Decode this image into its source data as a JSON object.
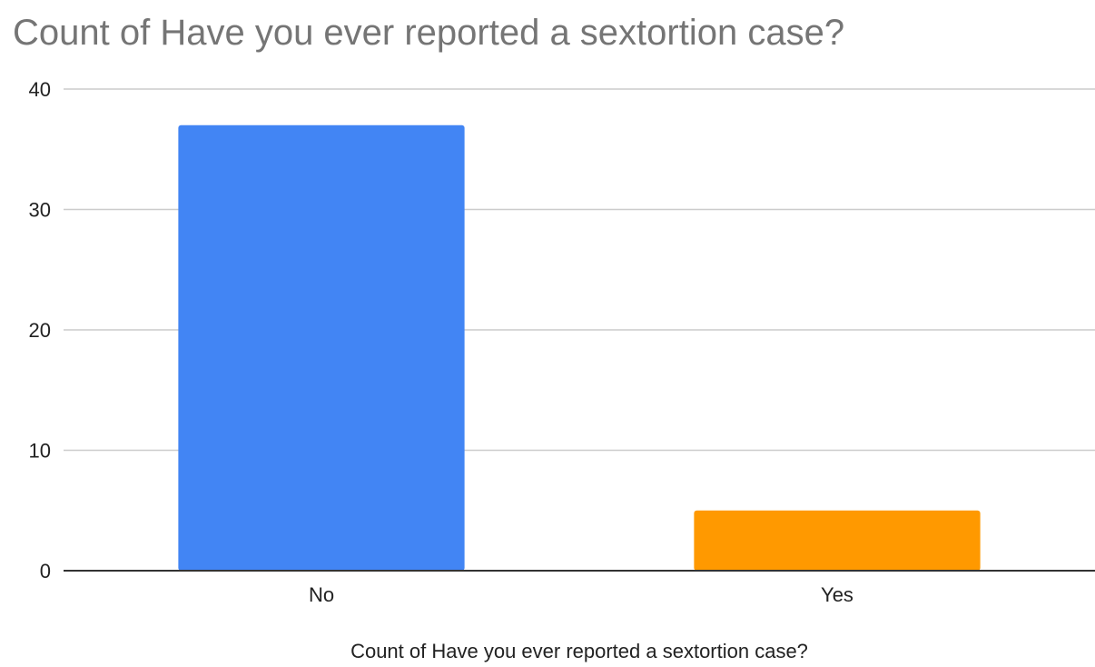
{
  "chart_data": {
    "type": "bar",
    "title": "Count of Have you ever reported a sextortion case?",
    "xlabel": "Count of Have you ever reported a sextortion case?",
    "ylabel": "",
    "categories": [
      "No",
      "Yes"
    ],
    "values": [
      37,
      5
    ],
    "colors": [
      "#4285f4",
      "#ff9900"
    ],
    "ylim": [
      0,
      40
    ],
    "yticks": [
      0,
      10,
      20,
      30,
      40
    ],
    "grid": true,
    "legend": "none"
  }
}
